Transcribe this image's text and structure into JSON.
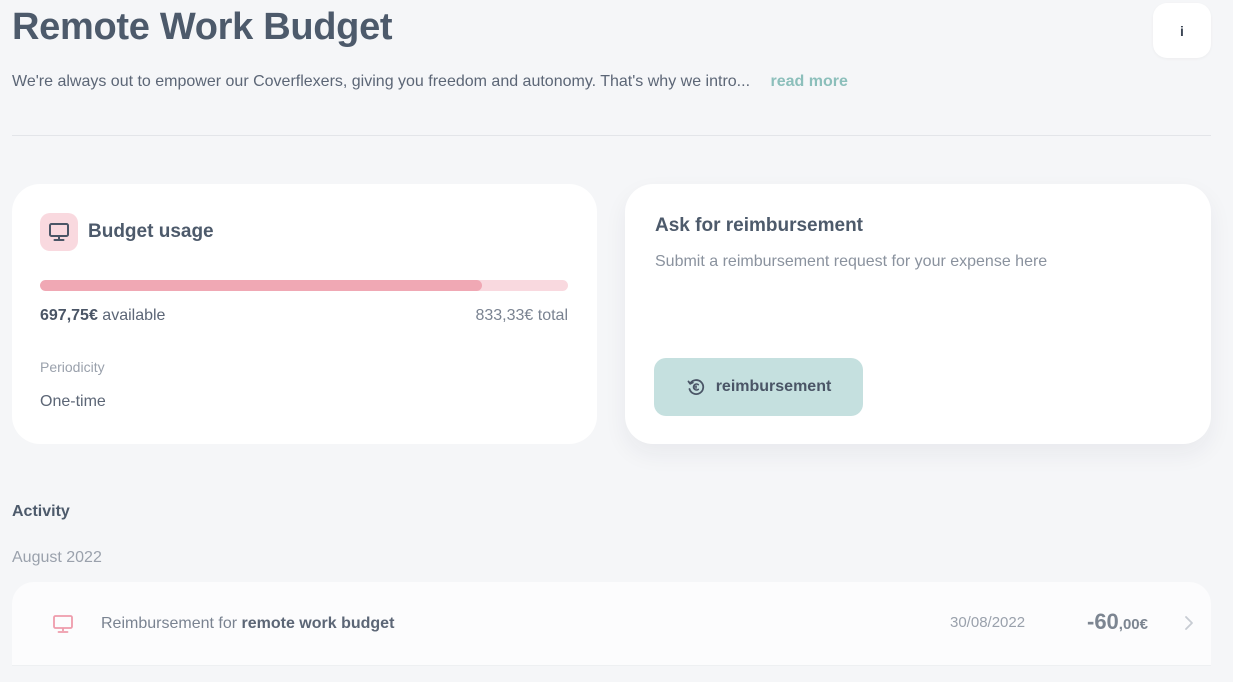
{
  "page": {
    "title": "Remote Work Budget",
    "info_button": "i",
    "intro": "We're always out to empower our Coverflexers, giving you freedom and autonomy. That's why we intro...",
    "read_more": "read more"
  },
  "budget": {
    "icon": "monitor-icon",
    "title": "Budget usage",
    "available_amount": "697,75€",
    "available_label": "available",
    "total": "833,33€ total",
    "used_fraction": 0.837,
    "periodicity_label": "Periodicity",
    "periodicity_value": "One-time"
  },
  "reimbursement": {
    "title": "Ask for reimbursement",
    "subtitle": "Submit a reimbursement request for your expense here",
    "button_icon": "euro-refresh-icon",
    "button_label": "reimbursement"
  },
  "activity": {
    "title": "Activity",
    "groups": [
      {
        "month": "August 2022",
        "items": [
          {
            "icon": "monitor-icon",
            "text_prefix": "Reimbursement for",
            "text_bold": "remote work budget",
            "date": "30/08/2022",
            "amount_main": "-60",
            "amount_decimal": ",00€"
          }
        ]
      }
    ]
  },
  "colors": {
    "background": "#f5f6f8",
    "accent_pink": "#f0a8b4",
    "pink_light": "#f9d9df",
    "accent_teal": "#c5e0df",
    "link_teal": "#8cbfbb",
    "heading": "#4d5a6b"
  }
}
